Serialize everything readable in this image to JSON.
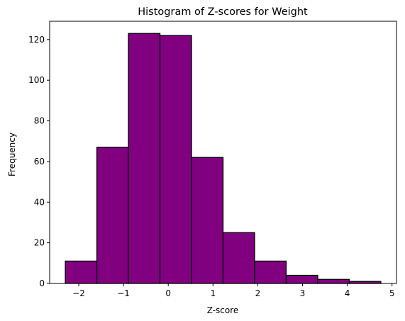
{
  "chart_data": {
    "type": "bar",
    "subtype": "histogram",
    "title": "Histogram of Z-scores for Weight",
    "xlabel": "Z-score",
    "ylabel": "Frequency",
    "bin_edges": [
      -2.3,
      -1.595,
      -0.89,
      -0.185,
      0.52,
      1.225,
      1.93,
      2.635,
      3.34,
      4.045,
      4.75
    ],
    "values": [
      11,
      67,
      123,
      122,
      62,
      25,
      11,
      4,
      2,
      1
    ],
    "xlim": [
      -2.65,
      5.1
    ],
    "ylim": [
      0,
      129
    ],
    "xticks": [
      -2,
      -1,
      0,
      1,
      2,
      3,
      4,
      5
    ],
    "xtick_labels": [
      "−2",
      "−1",
      "0",
      "1",
      "2",
      "3",
      "4",
      "5"
    ],
    "yticks": [
      0,
      20,
      40,
      60,
      80,
      100,
      120
    ],
    "ytick_labels": [
      "0",
      "20",
      "40",
      "60",
      "80",
      "100",
      "120"
    ],
    "grid": false,
    "bar_color": "#800080",
    "edge_color": "#000000"
  }
}
